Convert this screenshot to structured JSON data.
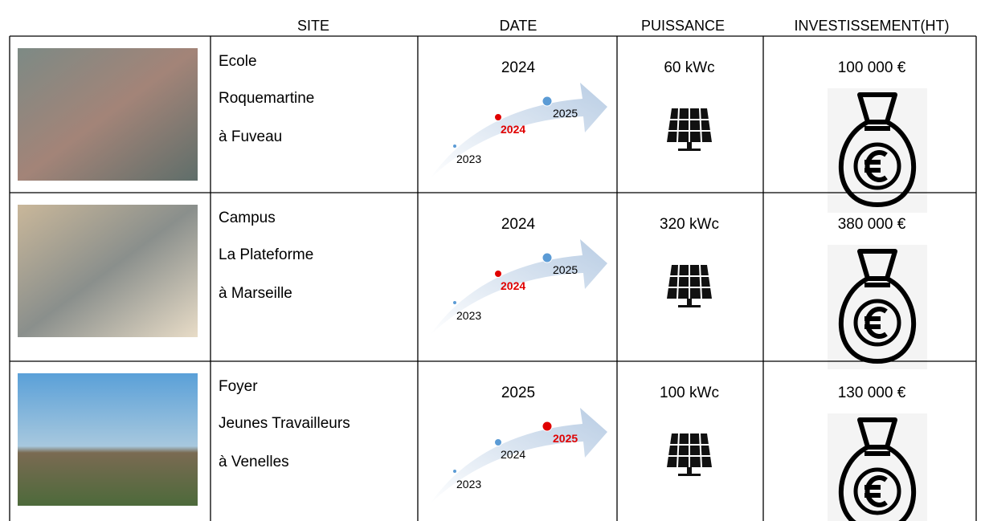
{
  "header": {
    "columns": [
      "SITE",
      "DATE",
      "PUISSANCE",
      "INVESTISSEMENT(HT)"
    ]
  },
  "rows": [
    {
      "site": [
        "Ecole",
        "Roquemartine",
        "à Fuveau"
      ],
      "date": "2024",
      "timeline": [
        "2023",
        "2024",
        "2025"
      ],
      "power": "60 kWc",
      "investment": "100 000 €"
    },
    {
      "site": [
        "Campus",
        "La Plateforme",
        "à Marseille"
      ],
      "date": "2024",
      "timeline": [
        "2023",
        "2024",
        "2025"
      ],
      "power": "320 kWc",
      "investment": "380 000 €"
    },
    {
      "site": [
        "Foyer",
        "Jeunes Travailleurs",
        "à Venelles"
      ],
      "date": "2025",
      "timeline": [
        "2023",
        "2024",
        "2025"
      ],
      "power": "100 kWc",
      "investment": "130 000 €"
    }
  ]
}
